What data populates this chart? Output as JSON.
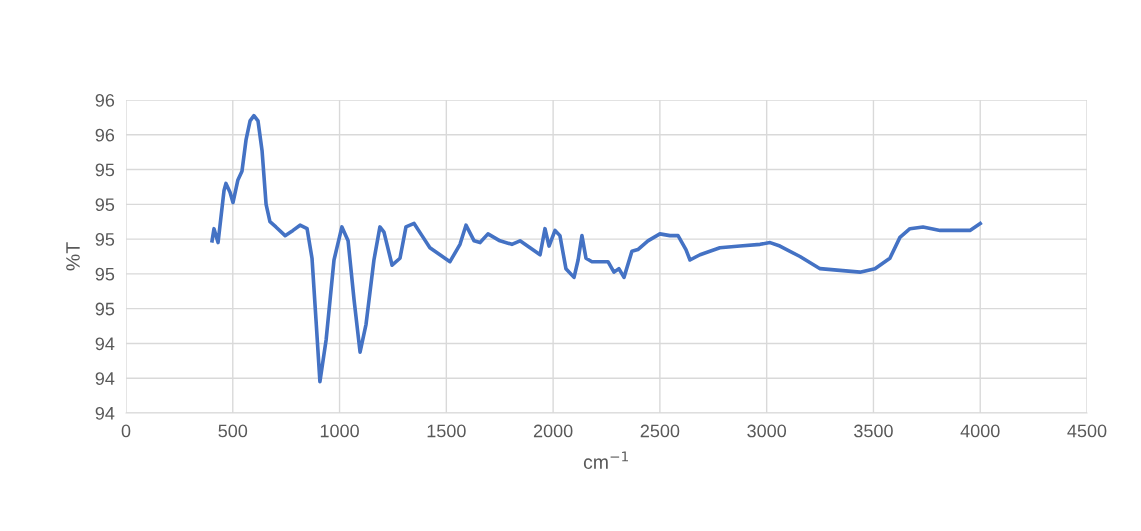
{
  "chart_data": {
    "type": "line",
    "xlabel": "cm$^{−1}$",
    "ylabel": "%T",
    "xlim": [
      0,
      4500
    ],
    "xticks": [
      0,
      500,
      1000,
      1500,
      2000,
      2500,
      3000,
      3500,
      4000,
      4500
    ],
    "ylim": [
      94.0,
      95.8
    ],
    "yticks": [
      {
        "value": 94.0,
        "label": "94"
      },
      {
        "value": 94.2,
        "label": "94"
      },
      {
        "value": 94.4,
        "label": "94"
      },
      {
        "value": 94.6,
        "label": "95"
      },
      {
        "value": 94.8,
        "label": "95"
      },
      {
        "value": 95.0,
        "label": "95"
      },
      {
        "value": 95.2,
        "label": "95"
      },
      {
        "value": 95.4,
        "label": "95"
      },
      {
        "value": 95.6,
        "label": "96"
      },
      {
        "value": 95.8,
        "label": "96"
      }
    ],
    "grid": true,
    "marker": "none",
    "line_style": "solid",
    "series": [
      {
        "color": "#4472c4",
        "x": [
          403,
          412,
          431,
          459,
          468,
          487,
          501,
          524,
          543,
          562,
          581,
          599,
          618,
          637,
          656,
          674,
          702,
          745,
          782,
          815,
          848,
          871,
          890,
          908,
          937,
          974,
          1011,
          1040,
          1068,
          1096,
          1124,
          1161,
          1189,
          1208,
          1246,
          1283,
          1311,
          1349,
          1386,
          1423,
          1470,
          1517,
          1564,
          1592,
          1630,
          1658,
          1695,
          1751,
          1807,
          1845,
          1892,
          1939,
          1962,
          1981,
          2009,
          2032,
          2060,
          2098,
          2117,
          2135,
          2154,
          2182,
          2257,
          2285,
          2308,
          2332,
          2369,
          2397,
          2444,
          2500,
          2547,
          2585,
          2622,
          2641,
          2688,
          2781,
          2875,
          2969,
          3016,
          3062,
          3156,
          3250,
          3343,
          3437,
          3507,
          3577,
          3624,
          3671,
          3732,
          3812,
          3905,
          3952,
          4000
        ],
        "values": [
          94.99,
          95.06,
          94.98,
          95.28,
          95.32,
          95.27,
          95.21,
          95.34,
          95.39,
          95.57,
          95.68,
          95.71,
          95.68,
          95.51,
          95.2,
          95.1,
          95.07,
          95.02,
          95.05,
          95.08,
          95.06,
          94.89,
          94.53,
          94.18,
          94.42,
          94.88,
          95.07,
          94.99,
          94.65,
          94.35,
          94.51,
          94.88,
          95.07,
          95.04,
          94.85,
          94.89,
          95.07,
          95.09,
          95.02,
          94.95,
          94.91,
          94.87,
          94.97,
          95.08,
          94.99,
          94.98,
          95.03,
          94.99,
          94.97,
          94.99,
          94.95,
          94.91,
          95.06,
          94.96,
          95.05,
          95.02,
          94.83,
          94.78,
          94.88,
          95.02,
          94.89,
          94.87,
          94.87,
          94.81,
          94.83,
          94.78,
          94.93,
          94.94,
          94.99,
          95.03,
          95.02,
          95.02,
          94.94,
          94.88,
          94.91,
          94.95,
          94.96,
          94.97,
          94.98,
          94.96,
          94.9,
          94.83,
          94.82,
          94.81,
          94.83,
          94.89,
          95.01,
          95.06,
          95.07,
          95.05,
          95.05,
          95.05,
          95.09
        ]
      }
    ]
  }
}
